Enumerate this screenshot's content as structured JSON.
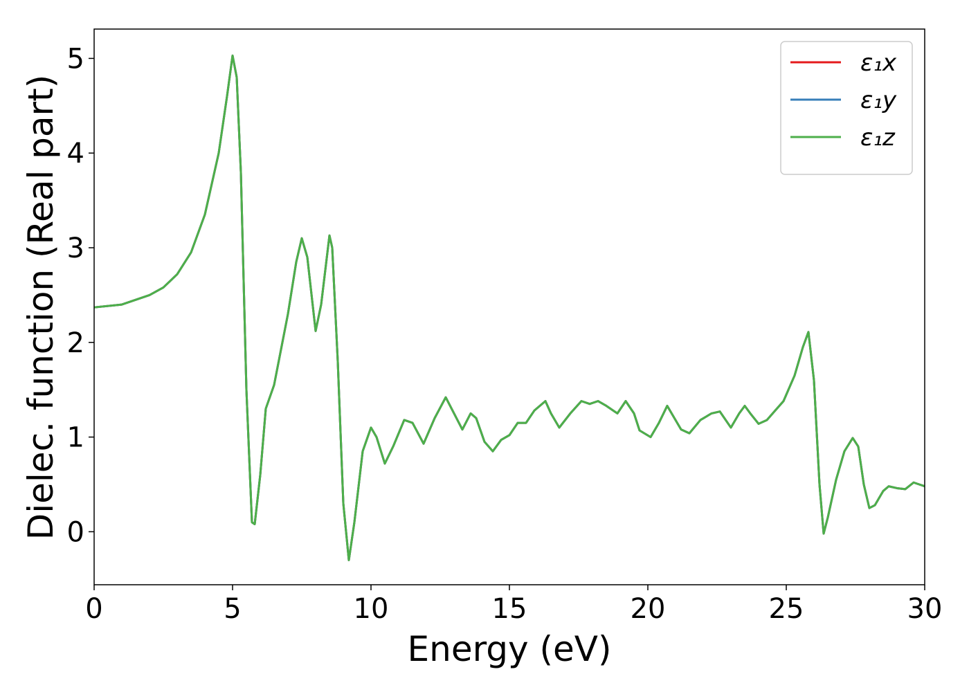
{
  "chart_data": {
    "type": "line",
    "xlabel": "Energy (eV)",
    "ylabel": "Dielec. function (Real part)",
    "x": [
      0,
      1,
      2,
      2.5,
      3,
      3.5,
      4,
      4.5,
      4.8,
      5.0,
      5.15,
      5.3,
      5.5,
      5.7,
      5.8,
      6.0,
      6.2,
      6.5,
      7.0,
      7.3,
      7.5,
      7.7,
      8.0,
      8.2,
      8.5,
      8.6,
      8.8,
      9.0,
      9.2,
      9.4,
      9.7,
      10.0,
      10.2,
      10.5,
      10.8,
      11.2,
      11.5,
      11.9,
      12.3,
      12.7,
      13.0,
      13.3,
      13.6,
      13.8,
      14.1,
      14.4,
      14.7,
      15.0,
      15.3,
      15.6,
      15.9,
      16.3,
      16.5,
      16.8,
      17.2,
      17.6,
      17.9,
      18.2,
      18.5,
      18.9,
      19.2,
      19.5,
      19.7,
      20.1,
      20.4,
      20.7,
      21.0,
      21.2,
      21.5,
      21.9,
      22.3,
      22.6,
      23.0,
      23.3,
      23.5,
      23.7,
      24.0,
      24.3,
      24.6,
      24.9,
      25.3,
      25.6,
      25.8,
      26.0,
      26.2,
      26.35,
      26.5,
      26.8,
      27.1,
      27.4,
      27.6,
      27.8,
      28.0,
      28.2,
      28.5,
      28.7,
      29.0,
      29.3,
      29.6,
      29.8,
      30.0
    ],
    "series": [
      {
        "name": "ε₁x",
        "color": "#e41a1c",
        "values": [
          2.37,
          2.4,
          2.5,
          2.58,
          2.72,
          2.95,
          3.35,
          4.0,
          4.6,
          5.03,
          4.8,
          3.8,
          1.5,
          0.1,
          0.08,
          0.6,
          1.3,
          1.55,
          2.3,
          2.85,
          3.1,
          2.9,
          2.12,
          2.4,
          3.13,
          3.0,
          1.8,
          0.3,
          -0.3,
          0.1,
          0.85,
          1.1,
          1.0,
          0.72,
          0.9,
          1.18,
          1.15,
          0.93,
          1.2,
          1.42,
          1.25,
          1.08,
          1.25,
          1.2,
          0.95,
          0.85,
          0.97,
          1.02,
          1.15,
          1.15,
          1.28,
          1.38,
          1.25,
          1.1,
          1.25,
          1.38,
          1.35,
          1.38,
          1.33,
          1.25,
          1.38,
          1.25,
          1.07,
          1.0,
          1.15,
          1.33,
          1.18,
          1.08,
          1.04,
          1.18,
          1.25,
          1.27,
          1.1,
          1.25,
          1.33,
          1.25,
          1.14,
          1.18,
          1.28,
          1.38,
          1.65,
          1.95,
          2.11,
          1.6,
          0.5,
          -0.02,
          0.15,
          0.55,
          0.85,
          0.99,
          0.9,
          0.5,
          0.25,
          0.28,
          0.43,
          0.48,
          0.46,
          0.45,
          0.52,
          0.5,
          0.48
        ]
      },
      {
        "name": "ε₁y",
        "color": "#377eb8",
        "values": [
          2.37,
          2.4,
          2.5,
          2.58,
          2.72,
          2.95,
          3.35,
          4.0,
          4.6,
          5.03,
          4.8,
          3.8,
          1.5,
          0.1,
          0.08,
          0.6,
          1.3,
          1.55,
          2.3,
          2.85,
          3.1,
          2.9,
          2.12,
          2.4,
          3.13,
          3.0,
          1.8,
          0.3,
          -0.3,
          0.1,
          0.85,
          1.1,
          1.0,
          0.72,
          0.9,
          1.18,
          1.15,
          0.93,
          1.2,
          1.42,
          1.25,
          1.08,
          1.25,
          1.2,
          0.95,
          0.85,
          0.97,
          1.02,
          1.15,
          1.15,
          1.28,
          1.38,
          1.25,
          1.1,
          1.25,
          1.38,
          1.35,
          1.38,
          1.33,
          1.25,
          1.38,
          1.25,
          1.07,
          1.0,
          1.15,
          1.33,
          1.18,
          1.08,
          1.04,
          1.18,
          1.25,
          1.27,
          1.1,
          1.25,
          1.33,
          1.25,
          1.14,
          1.18,
          1.28,
          1.38,
          1.65,
          1.95,
          2.11,
          1.6,
          0.5,
          -0.02,
          0.15,
          0.55,
          0.85,
          0.99,
          0.9,
          0.5,
          0.25,
          0.28,
          0.43,
          0.48,
          0.46,
          0.45,
          0.52,
          0.5,
          0.48
        ]
      },
      {
        "name": "ε₁z",
        "color": "#4daf4a",
        "values": [
          2.37,
          2.4,
          2.5,
          2.58,
          2.72,
          2.95,
          3.35,
          4.0,
          4.6,
          5.03,
          4.8,
          3.8,
          1.5,
          0.1,
          0.08,
          0.6,
          1.3,
          1.55,
          2.3,
          2.85,
          3.1,
          2.9,
          2.12,
          2.4,
          3.13,
          3.0,
          1.8,
          0.3,
          -0.3,
          0.1,
          0.85,
          1.1,
          1.0,
          0.72,
          0.9,
          1.18,
          1.15,
          0.93,
          1.2,
          1.42,
          1.25,
          1.08,
          1.25,
          1.2,
          0.95,
          0.85,
          0.97,
          1.02,
          1.15,
          1.15,
          1.28,
          1.38,
          1.25,
          1.1,
          1.25,
          1.38,
          1.35,
          1.38,
          1.33,
          1.25,
          1.38,
          1.25,
          1.07,
          1.0,
          1.15,
          1.33,
          1.18,
          1.08,
          1.04,
          1.18,
          1.25,
          1.27,
          1.1,
          1.25,
          1.33,
          1.25,
          1.14,
          1.18,
          1.28,
          1.38,
          1.65,
          1.95,
          2.11,
          1.6,
          0.5,
          -0.02,
          0.15,
          0.55,
          0.85,
          0.99,
          0.9,
          0.5,
          0.25,
          0.28,
          0.43,
          0.48,
          0.46,
          0.45,
          0.52,
          0.5,
          0.48
        ]
      }
    ],
    "xlim": [
      0,
      30
    ],
    "xticks": [
      0,
      5,
      10,
      15,
      20,
      25,
      30
    ],
    "ylim": [
      -0.56,
      5.31
    ],
    "yticks": [
      0,
      1,
      2,
      3,
      4,
      5
    ],
    "grid": false,
    "legend": "upper right"
  }
}
